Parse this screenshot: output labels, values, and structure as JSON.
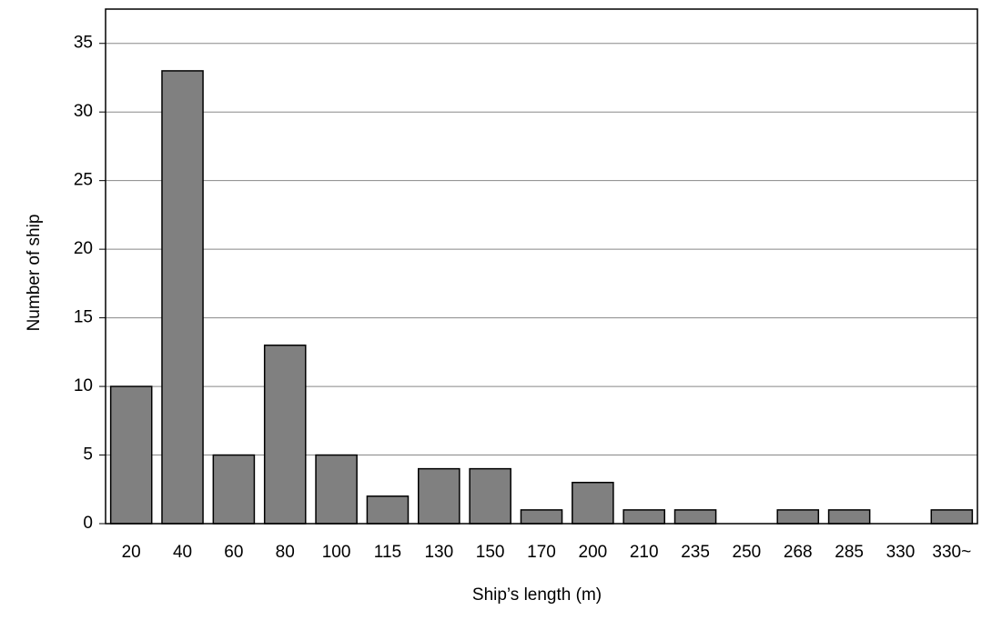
{
  "chart_data": {
    "type": "bar",
    "x_label": "Ship’s length  (m)",
    "y_label": "Number of ship",
    "categories": [
      "20",
      "40",
      "60",
      "80",
      "100",
      "115",
      "130",
      "150",
      "170",
      "200",
      "210",
      "235",
      "250",
      "268",
      "285",
      "330",
      "330~"
    ],
    "values": [
      10,
      33,
      5,
      13,
      5,
      2,
      4,
      4,
      1,
      3,
      1,
      1,
      0,
      1,
      1,
      0,
      1
    ],
    "color": "#808080",
    "ylim": [
      0,
      37.5
    ],
    "yticks": [
      0,
      5,
      10,
      15,
      20,
      25,
      30,
      35
    ],
    "grid": true
  }
}
